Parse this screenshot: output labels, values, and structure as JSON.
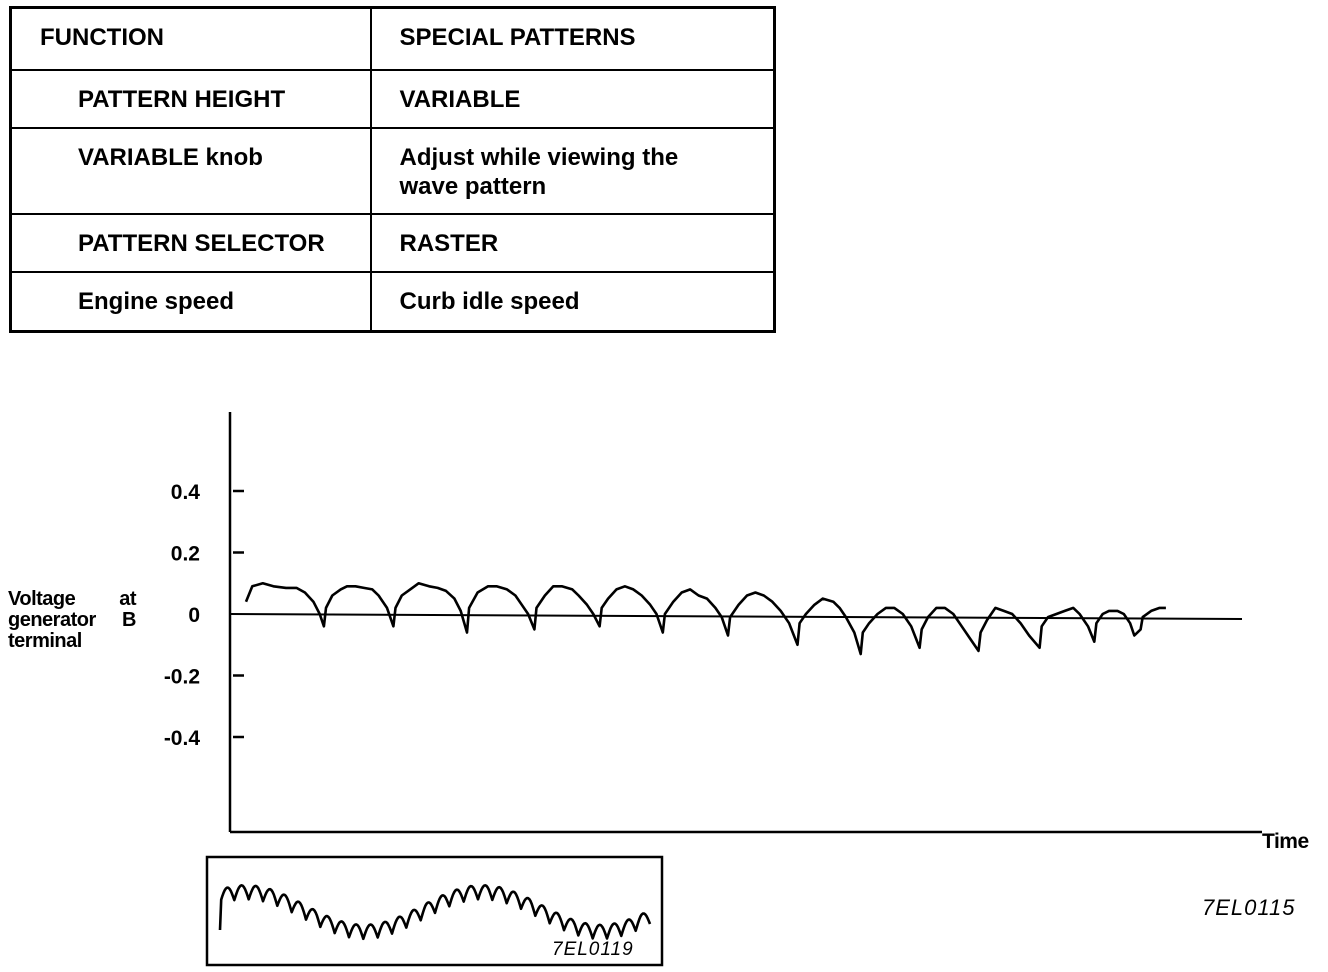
{
  "table": {
    "header": {
      "function": "FUNCTION",
      "value": "SPECIAL PATTERNS"
    },
    "rows": [
      {
        "function": "PATTERN HEIGHT",
        "value": "VARIABLE",
        "indent": true
      },
      {
        "function": "VARIABLE knob",
        "value": "Adjust while viewing the wave pattern",
        "indent": true
      },
      {
        "function": "PATTERN SELECTOR",
        "value": "RASTER",
        "indent": true
      },
      {
        "function": "Engine speed",
        "value": "Curb idle speed",
        "indent": true
      }
    ]
  },
  "chart_data": {
    "type": "line",
    "ylabel_lines": [
      "Voltage at",
      "generator B",
      "terminal"
    ],
    "xlabel": "Time",
    "yticks": [
      {
        "value": 0.4,
        "label": "0.4"
      },
      {
        "value": 0.2,
        "label": "0.2"
      },
      {
        "value": 0,
        "label": "0"
      },
      {
        "value": -0.2,
        "label": "-0.2"
      },
      {
        "value": -0.4,
        "label": "-0.4"
      }
    ],
    "ylim": [
      -0.7,
      0.66
    ],
    "series": [
      {
        "values": [
          [
            0,
            0.04
          ],
          [
            0.03,
            0.09
          ],
          [
            0.08,
            0.1
          ],
          [
            0.13,
            0.09
          ],
          [
            0.19,
            0.085
          ],
          [
            0.24,
            0.085
          ],
          [
            0.28,
            0.07
          ],
          [
            0.32,
            0.04
          ],
          [
            0.35,
            0.0
          ],
          [
            0.37,
            -0.04
          ],
          [
            0.38,
            0.02
          ],
          [
            0.41,
            0.06
          ],
          [
            0.45,
            0.08
          ],
          [
            0.48,
            0.09
          ],
          [
            0.52,
            0.09
          ],
          [
            0.56,
            0.085
          ],
          [
            0.6,
            0.08
          ],
          [
            0.63,
            0.06
          ],
          [
            0.67,
            0.02
          ],
          [
            0.7,
            -0.04
          ],
          [
            0.71,
            0.02
          ],
          [
            0.74,
            0.06
          ],
          [
            0.78,
            0.08
          ],
          [
            0.82,
            0.1
          ],
          [
            0.87,
            0.09
          ],
          [
            0.91,
            0.085
          ],
          [
            0.95,
            0.075
          ],
          [
            0.99,
            0.05
          ],
          [
            1.02,
            0.01
          ],
          [
            1.05,
            -0.06
          ],
          [
            1.06,
            0.02
          ],
          [
            1.1,
            0.07
          ],
          [
            1.15,
            0.09
          ],
          [
            1.19,
            0.09
          ],
          [
            1.24,
            0.08
          ],
          [
            1.28,
            0.06
          ],
          [
            1.31,
            0.03
          ],
          [
            1.34,
            0.0
          ],
          [
            1.37,
            -0.05
          ],
          [
            1.38,
            0.02
          ],
          [
            1.42,
            0.06
          ],
          [
            1.46,
            0.09
          ],
          [
            1.5,
            0.09
          ],
          [
            1.55,
            0.08
          ],
          [
            1.58,
            0.06
          ],
          [
            1.62,
            0.03
          ],
          [
            1.65,
            0.0
          ],
          [
            1.68,
            -0.04
          ],
          [
            1.69,
            0.02
          ],
          [
            1.72,
            0.05
          ],
          [
            1.76,
            0.08
          ],
          [
            1.8,
            0.09
          ],
          [
            1.84,
            0.08
          ],
          [
            1.88,
            0.06
          ],
          [
            1.92,
            0.03
          ],
          [
            1.95,
            0.0
          ],
          [
            1.98,
            -0.06
          ],
          [
            1.99,
            0.0
          ],
          [
            2.03,
            0.04
          ],
          [
            2.07,
            0.07
          ],
          [
            2.11,
            0.08
          ],
          [
            2.15,
            0.06
          ],
          [
            2.19,
            0.05
          ],
          [
            2.23,
            0.02
          ],
          [
            2.26,
            -0.01
          ],
          [
            2.29,
            -0.07
          ],
          [
            2.3,
            -0.01
          ],
          [
            2.34,
            0.03
          ],
          [
            2.38,
            0.06
          ],
          [
            2.42,
            0.07
          ],
          [
            2.46,
            0.06
          ],
          [
            2.5,
            0.04
          ],
          [
            2.54,
            0.01
          ],
          [
            2.58,
            -0.03
          ],
          [
            2.62,
            -0.1
          ],
          [
            2.63,
            -0.03
          ],
          [
            2.66,
            0.0
          ],
          [
            2.7,
            0.03
          ],
          [
            2.74,
            0.05
          ],
          [
            2.79,
            0.04
          ],
          [
            2.82,
            0.02
          ],
          [
            2.85,
            -0.01
          ],
          [
            2.89,
            -0.06
          ],
          [
            2.92,
            -0.13
          ],
          [
            2.93,
            -0.06
          ],
          [
            2.96,
            -0.03
          ],
          [
            3.0,
            0.0
          ],
          [
            3.04,
            0.02
          ],
          [
            3.08,
            0.02
          ],
          [
            3.12,
            0.0
          ],
          [
            3.16,
            -0.04
          ],
          [
            3.2,
            -0.11
          ],
          [
            3.21,
            -0.05
          ],
          [
            3.24,
            -0.01
          ],
          [
            3.28,
            0.02
          ],
          [
            3.32,
            0.02
          ],
          [
            3.36,
            0.0
          ],
          [
            3.4,
            -0.04
          ],
          [
            3.44,
            -0.08
          ],
          [
            3.48,
            -0.12
          ],
          [
            3.49,
            -0.06
          ],
          [
            3.52,
            -0.02
          ],
          [
            3.56,
            0.02
          ],
          [
            3.6,
            0.01
          ],
          [
            3.64,
            0.0
          ],
          [
            3.68,
            -0.03
          ],
          [
            3.72,
            -0.07
          ],
          [
            3.77,
            -0.11
          ],
          [
            3.78,
            -0.04
          ],
          [
            3.81,
            -0.01
          ],
          [
            3.85,
            0.0
          ],
          [
            3.89,
            0.01
          ],
          [
            3.93,
            0.02
          ],
          [
            3.96,
            0.0
          ],
          [
            4.0,
            -0.04
          ],
          [
            4.03,
            -0.09
          ],
          [
            4.04,
            -0.03
          ],
          [
            4.07,
            0.0
          ],
          [
            4.1,
            0.01
          ],
          [
            4.14,
            0.01
          ],
          [
            4.17,
            0.0
          ],
          [
            4.2,
            -0.03
          ],
          [
            4.22,
            -0.07
          ],
          [
            4.25,
            -0.05
          ],
          [
            4.26,
            -0.01
          ],
          [
            4.3,
            0.01
          ],
          [
            4.34,
            0.02
          ],
          [
            4.37,
            0.02
          ]
        ]
      }
    ],
    "inset": {
      "code": "7EL0119"
    },
    "figure_code": "7EL0115"
  }
}
